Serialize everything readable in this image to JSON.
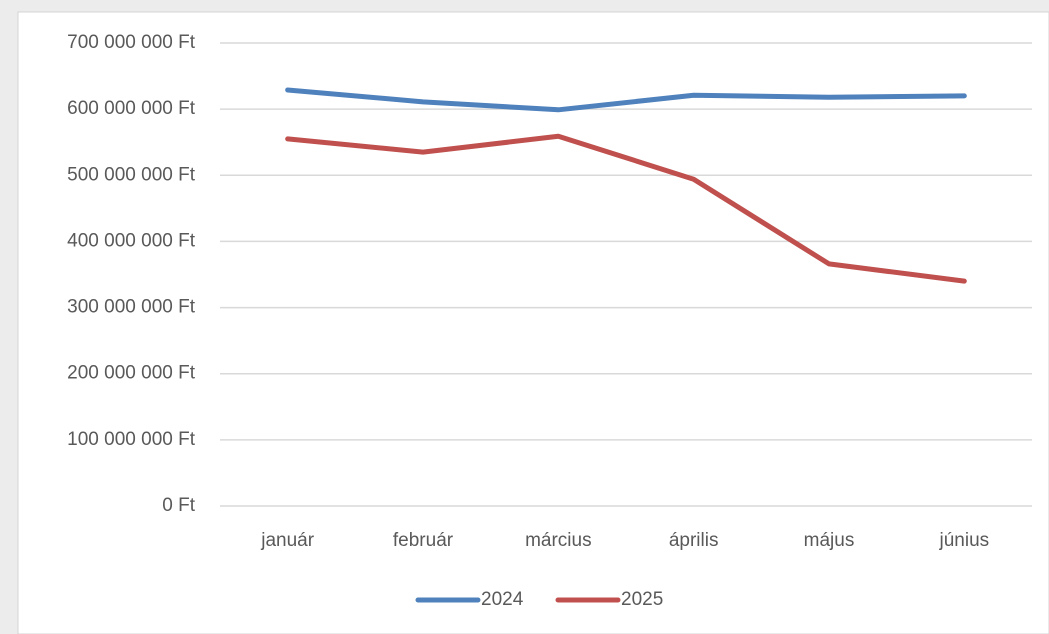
{
  "chart_data": {
    "type": "line",
    "categories": [
      "január",
      "február",
      "március",
      "április",
      "május",
      "június"
    ],
    "series": [
      {
        "name": "2024",
        "color": "#4f81bd",
        "values": [
          629000000,
          611000000,
          599000000,
          621000000,
          618000000,
          620000000
        ]
      },
      {
        "name": "2025",
        "color": "#c0504d",
        "values": [
          555000000,
          535000000,
          559000000,
          494000000,
          366000000,
          340000000
        ]
      }
    ],
    "ylim": [
      0,
      700000000
    ],
    "yticks": [
      {
        "value": 0,
        "label": "0 Ft"
      },
      {
        "value": 100000000,
        "label": "100 000 000 Ft"
      },
      {
        "value": 200000000,
        "label": "200 000 000 Ft"
      },
      {
        "value": 300000000,
        "label": "300 000 000 Ft"
      },
      {
        "value": 400000000,
        "label": "400 000 000 Ft"
      },
      {
        "value": 500000000,
        "label": "500 000 000 Ft"
      },
      {
        "value": 600000000,
        "label": "600 000 000 Ft"
      },
      {
        "value": 700000000,
        "label": "700 000 000 Ft"
      }
    ],
    "grid": true,
    "legend": "bottom"
  }
}
